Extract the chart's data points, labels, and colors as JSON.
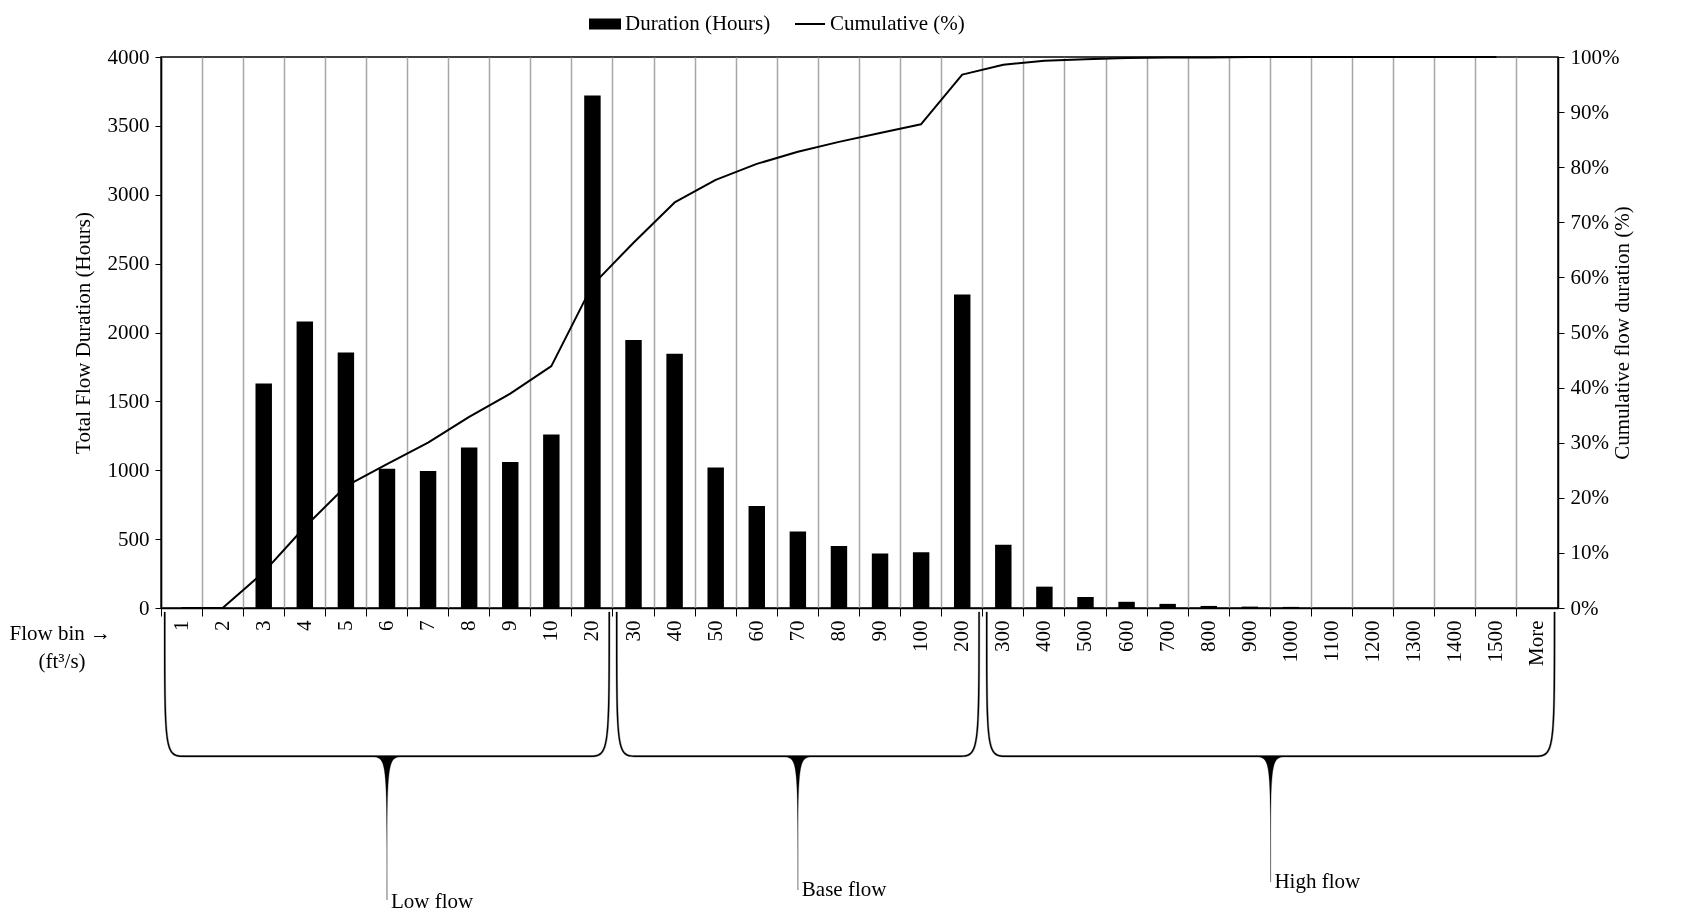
{
  "chart_data": {
    "type": "bar",
    "ylabel": "Total Flow Duration (Hours)",
    "y2label": "Cumulative flow duration (%)",
    "categories": [
      "1",
      "2",
      "3",
      "4",
      "5",
      "6",
      "7",
      "8",
      "9",
      "10",
      "20",
      "30",
      "40",
      "50",
      "60",
      "70",
      "80",
      "90",
      "100",
      "200",
      "300",
      "400",
      "500",
      "600",
      "700",
      "800",
      "900",
      "1000",
      "1100",
      "1200",
      "1300",
      "1400",
      "1500",
      "More"
    ],
    "series": [
      {
        "name": "Duration (Hours)",
        "color": "#000000",
        "values": [
          0,
          0,
          1630,
          2080,
          1855,
          1010,
          995,
          1165,
          1060,
          1260,
          3720,
          1945,
          1845,
          1020,
          740,
          555,
          450,
          395,
          405,
          2275,
          460,
          155,
          80,
          45,
          30,
          15,
          10,
          8,
          0,
          0,
          0,
          0,
          0,
          0
        ]
      },
      {
        "name": "Cumulative (%)",
        "type": "line",
        "axis": "y2",
        "color": "#000000",
        "values": [
          0,
          0,
          6.5,
          14.7,
          22.1,
          26.1,
          30.0,
          34.7,
          38.9,
          43.9,
          58.6,
          66.3,
          73.6,
          77.7,
          80.6,
          82.8,
          84.6,
          86.2,
          87.8,
          96.8,
          98.6,
          99.3,
          99.6,
          99.8,
          99.9,
          99.9,
          100,
          100,
          100,
          100,
          100,
          100,
          100,
          null
        ]
      }
    ],
    "ylim": [
      0,
      4000
    ],
    "yticks": [
      0,
      500,
      1000,
      1500,
      2000,
      2500,
      3000,
      3500,
      4000
    ],
    "y2lim": [
      0,
      100
    ],
    "y2ticks": [
      {
        "value": 0,
        "label": "0%"
      },
      {
        "value": 10,
        "label": "10%"
      },
      {
        "value": 20,
        "label": "20%"
      },
      {
        "value": 30,
        "label": "30%"
      },
      {
        "value": 40,
        "label": "40%"
      },
      {
        "value": 50,
        "label": "50%"
      },
      {
        "value": 60,
        "label": "60%"
      },
      {
        "value": 70,
        "label": "70%"
      },
      {
        "value": 80,
        "label": "80%"
      },
      {
        "value": 90,
        "label": "90%"
      },
      {
        "value": 100,
        "label": "100%"
      }
    ],
    "grid": "x",
    "legend": "top",
    "annotations": [
      "Flow bin →",
      "(ft³/s)",
      "Low flow",
      "Base flow",
      "High flow"
    ]
  }
}
